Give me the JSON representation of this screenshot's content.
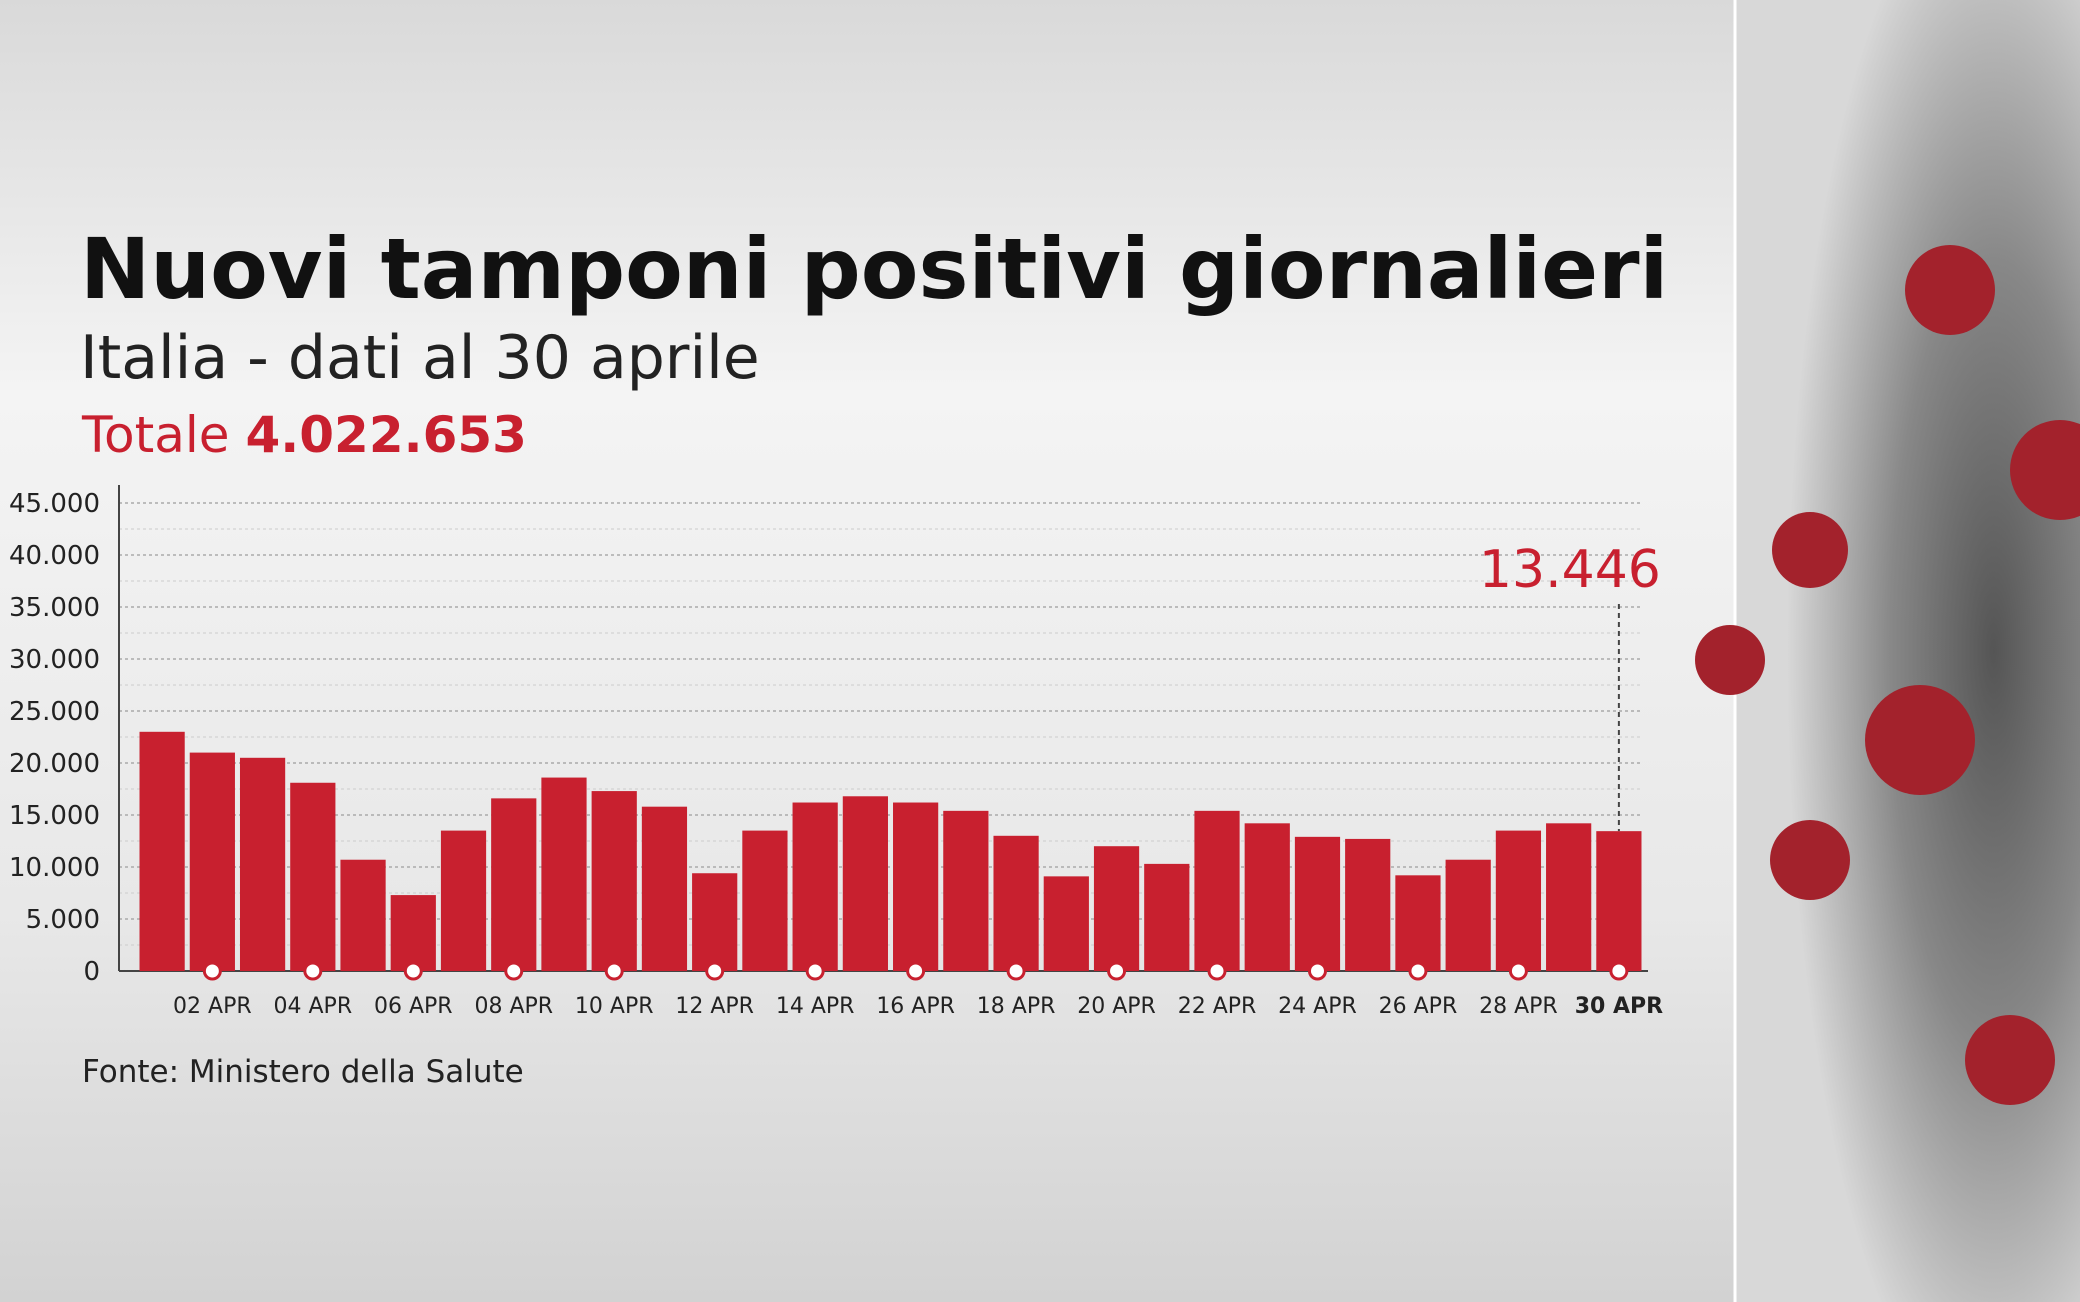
{
  "chart_data": {
    "type": "bar",
    "title": "Nuovi tamponi positivi giornalieri",
    "subtitle": "Italia - dati al 30 aprile",
    "total_label": "Totale",
    "total_value": "4.022.653",
    "source": "Fonte: Ministero della Salute",
    "categories": [
      null,
      "02 APR",
      null,
      "04 APR",
      null,
      "06 APR",
      null,
      "08 APR",
      null,
      "10 APR",
      null,
      "12 APR",
      null,
      "14 APR",
      null,
      "16 APR",
      null,
      "18 APR",
      null,
      "20 APR",
      null,
      "22 APR",
      null,
      "24 APR",
      null,
      "26 APR",
      null,
      "28 APR",
      null,
      "30 APR"
    ],
    "values": [
      23000,
      21000,
      20500,
      18100,
      10700,
      7300,
      13500,
      16600,
      18600,
      17300,
      15800,
      9400,
      13500,
      16200,
      16800,
      16200,
      15400,
      13000,
      9100,
      12000,
      10300,
      15400,
      14200,
      12900,
      12700,
      9200,
      10700,
      13500,
      14200,
      13446
    ],
    "value_labels": [
      null,
      null,
      null,
      null,
      null,
      null,
      null,
      null,
      null,
      null,
      null,
      null,
      null,
      null,
      null,
      null,
      null,
      null,
      null,
      null,
      null,
      null,
      null,
      null,
      null,
      null,
      null,
      null,
      null,
      "13.446"
    ],
    "color": "#c8202f",
    "ylim": [
      0,
      45000
    ],
    "yticks": [
      0,
      {
        "value": 5000,
        "label": "5.000"
      },
      {
        "value": 10000,
        "label": "10.000"
      },
      {
        "value": 15000,
        "label": "15.000"
      },
      {
        "value": 20000,
        "label": "20.000"
      },
      {
        "value": 25000,
        "label": "25.000"
      },
      {
        "value": 30000,
        "label": "30.000"
      },
      {
        "value": 35000,
        "label": "35.000"
      },
      {
        "value": 40000,
        "label": "40.000"
      },
      {
        "value": 45000,
        "label": "45.000"
      }
    ],
    "grid": true
  }
}
